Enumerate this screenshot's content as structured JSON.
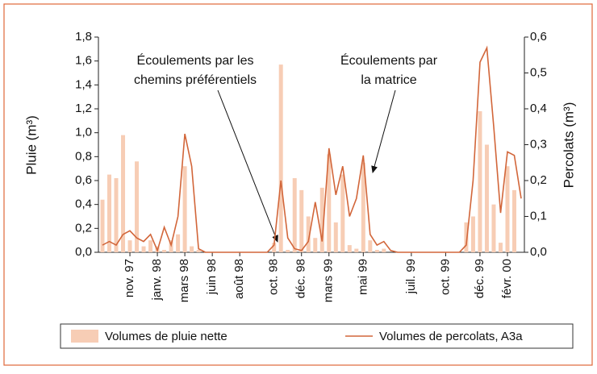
{
  "chart_data": {
    "type": "bar-line",
    "categories": [
      null,
      null,
      null,
      null,
      "nov. 97",
      null,
      null,
      null,
      "janv. 98",
      null,
      null,
      null,
      "mars 98",
      null,
      null,
      null,
      "juin 98",
      null,
      null,
      null,
      "août 98",
      null,
      null,
      null,
      null,
      "oct. 98",
      null,
      null,
      null,
      "déc. 98",
      null,
      null,
      null,
      "mars 99",
      null,
      null,
      null,
      null,
      "mai 99",
      null,
      null,
      null,
      null,
      null,
      null,
      "juil. 99",
      null,
      null,
      null,
      null,
      "oct. 99",
      null,
      null,
      null,
      null,
      "déc. 99",
      null,
      null,
      null,
      "févr. 00",
      null,
      null
    ],
    "series": [
      {
        "name": "Volumes de pluie nette",
        "type": "bar",
        "color": "#f7cdb5",
        "axis": "y",
        "values": [
          0.44,
          0.65,
          0.62,
          0.98,
          0.1,
          0.76,
          0.05,
          0.1,
          0.05,
          0.02,
          0.1,
          0.15,
          0.72,
          0.05,
          0.02,
          0,
          0,
          0,
          0,
          0,
          0,
          0,
          0,
          0,
          0,
          0.08,
          1.57,
          0.02,
          0.62,
          0.52,
          0.3,
          0.12,
          0.54,
          0.82,
          0.25,
          0.65,
          0.06,
          0.03,
          0.75,
          0.1,
          0.02,
          0.03,
          0,
          0,
          0,
          0,
          0,
          0,
          0,
          0,
          0,
          0,
          0,
          0.25,
          0.3,
          1.18,
          0.9,
          0.4,
          0.08,
          0.72,
          0.52,
          0
        ]
      },
      {
        "name": "Volumes de percolats, A3a",
        "type": "line",
        "color": "#d2663a",
        "axis": "y2",
        "values": [
          0.02,
          0.03,
          0.02,
          0.05,
          0.06,
          0.04,
          0.03,
          0.05,
          0.005,
          0.07,
          0.02,
          0.1,
          0.33,
          0.24,
          0.01,
          0,
          0,
          0,
          0,
          0,
          0,
          0,
          0,
          0,
          0,
          0.02,
          0.2,
          0.04,
          0.01,
          0.005,
          0.03,
          0.14,
          0.03,
          0.29,
          0.16,
          0.24,
          0.1,
          0.15,
          0.27,
          0.05,
          0.02,
          0.03,
          0.005,
          0,
          0,
          0,
          0,
          0,
          0,
          0,
          0,
          0,
          0,
          0.02,
          0.2,
          0.53,
          0.57,
          0.35,
          0.11,
          0.28,
          0.27,
          0.15
        ]
      }
    ],
    "ylabel": "Pluie (m³)",
    "y2label": "Percolats (m³)",
    "ylim": [
      0,
      1.8
    ],
    "yticks": [
      {
        "value": 0,
        "label": "0,0"
      },
      {
        "value": 0.2,
        "label": "0,2"
      },
      {
        "value": 0.4,
        "label": "0,4"
      },
      {
        "value": 0.6,
        "label": "0,6"
      },
      {
        "value": 0.8,
        "label": "0,8"
      },
      {
        "value": 1.0,
        "label": "1,0"
      },
      {
        "value": 1.2,
        "label": "1,2"
      },
      {
        "value": 1.4,
        "label": "1,4"
      },
      {
        "value": 1.6,
        "label": "1,6"
      },
      {
        "value": 1.8,
        "label": "1,8"
      }
    ],
    "y2lim": [
      0,
      0.6
    ],
    "y2ticks": [
      {
        "value": 0,
        "label": "0,0"
      },
      {
        "value": 0.1,
        "label": "0,1"
      },
      {
        "value": 0.2,
        "label": "0,2"
      },
      {
        "value": 0.3,
        "label": "0,3"
      },
      {
        "value": 0.4,
        "label": "0,4"
      },
      {
        "value": 0.5,
        "label": "0,5"
      },
      {
        "value": 0.6,
        "label": "0,6"
      }
    ],
    "annotations": [
      {
        "lines": [
          "Écoulements par les",
          "chemins préférentiels"
        ]
      },
      {
        "lines": [
          "Écoulements par",
          "la matrice"
        ]
      }
    ]
  }
}
